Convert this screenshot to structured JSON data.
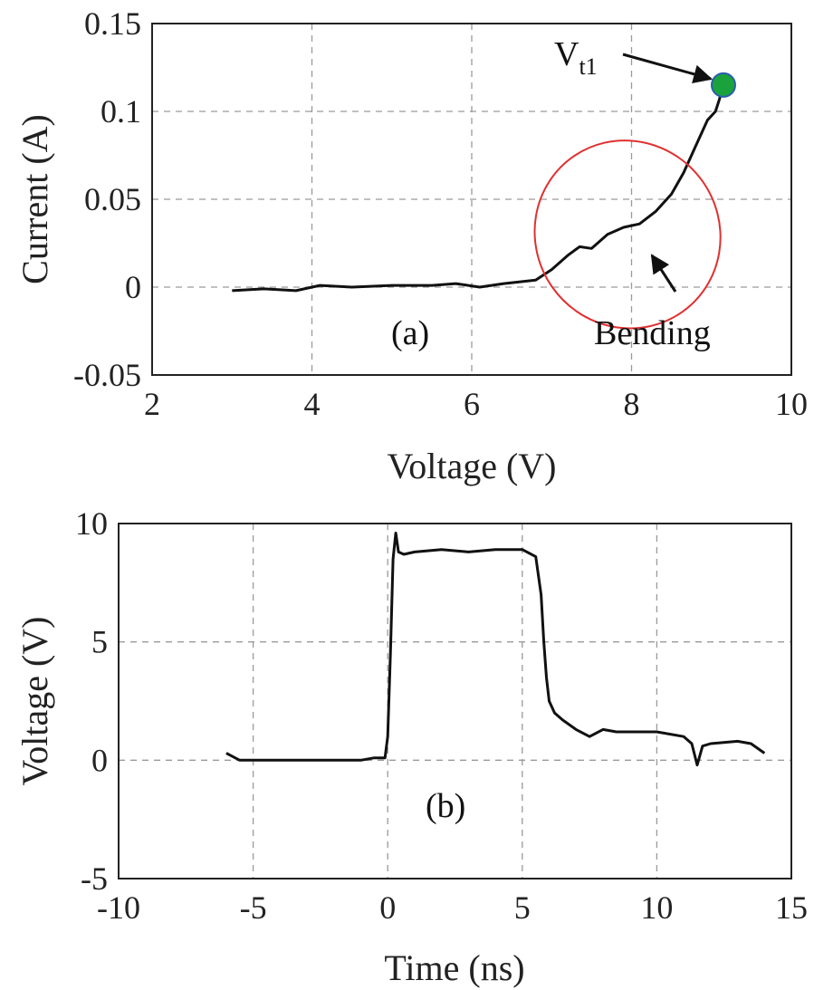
{
  "chart_data": [
    {
      "type": "line",
      "panel_label": "(a)",
      "xlabel": "Voltage (V)",
      "ylabel": "Current (A)",
      "xlim": [
        2,
        10
      ],
      "ylim": [
        -0.05,
        0.15
      ],
      "xticks": [
        2,
        4,
        6,
        8,
        10
      ],
      "yticks": [
        -0.05,
        0,
        0.05,
        0.1,
        0.15
      ],
      "xtick_labels": [
        "2",
        "4",
        "6",
        "8",
        "10"
      ],
      "ytick_labels": [
        "-0.05",
        "0",
        "0.05",
        "0.1",
        "0.15"
      ],
      "grid": true,
      "series": [
        {
          "x": [
            3.0,
            3.4,
            3.8,
            4.1,
            4.5,
            5.0,
            5.5,
            5.8,
            6.1,
            6.4,
            6.8,
            7.0,
            7.2,
            7.35,
            7.5,
            7.7,
            7.9,
            8.1,
            8.3,
            8.5,
            8.65,
            8.8,
            8.95,
            9.05,
            9.1,
            9.15
          ],
          "y": [
            -0.002,
            -0.001,
            -0.002,
            0.001,
            0.0,
            0.001,
            0.001,
            0.002,
            0.0,
            0.002,
            0.004,
            0.01,
            0.018,
            0.023,
            0.022,
            0.03,
            0.034,
            0.036,
            0.043,
            0.053,
            0.065,
            0.08,
            0.095,
            0.1,
            0.107,
            0.115
          ]
        }
      ],
      "marker": {
        "x": 9.15,
        "y": 0.115,
        "color": "#1aa33c",
        "edge_color": "#2a5db0"
      },
      "ellipse": {
        "cx": 7.95,
        "cy": 0.03,
        "rx": 1.15,
        "ry": 0.03,
        "angle_deg": -35,
        "color": "#e03030"
      },
      "annotations": [
        {
          "text": "V",
          "subscript": "t1",
          "points_to": "marker"
        },
        {
          "text": "Bending",
          "points_to": "ellipse"
        }
      ]
    },
    {
      "type": "line",
      "panel_label": "(b)",
      "xlabel": "Time (ns)",
      "ylabel": "Voltage (V)",
      "xlim": [
        -10,
        15
      ],
      "ylim": [
        -5,
        10
      ],
      "xticks": [
        -10,
        -5,
        0,
        5,
        10,
        15
      ],
      "yticks": [
        -5,
        0,
        5,
        10
      ],
      "xtick_labels": [
        "-10",
        "-5",
        "0",
        "5",
        "10",
        "15"
      ],
      "ytick_labels": [
        "-5",
        "0",
        "5",
        "10"
      ],
      "grid": true,
      "series": [
        {
          "x": [
            -6.0,
            -5.5,
            -5.0,
            -4.0,
            -3.0,
            -2.0,
            -1.0,
            -0.5,
            -0.1,
            0.0,
            0.1,
            0.2,
            0.3,
            0.4,
            0.6,
            1.0,
            2.0,
            3.0,
            4.0,
            5.0,
            5.5,
            5.7,
            5.8,
            5.9,
            6.0,
            6.2,
            6.5,
            7.0,
            7.5,
            8.0,
            8.5,
            9.0,
            10.0,
            11.0,
            11.3,
            11.5,
            11.7,
            12.0,
            13.0,
            13.5,
            14.0
          ],
          "y": [
            0.3,
            0.0,
            0.0,
            0.0,
            0.0,
            0.0,
            0.0,
            0.1,
            0.1,
            1.0,
            4.5,
            8.5,
            9.6,
            8.8,
            8.7,
            8.8,
            8.9,
            8.8,
            8.9,
            8.9,
            8.6,
            7.0,
            5.0,
            3.5,
            2.5,
            2.0,
            1.7,
            1.3,
            1.0,
            1.3,
            1.2,
            1.2,
            1.2,
            1.0,
            0.7,
            -0.2,
            0.6,
            0.7,
            0.8,
            0.7,
            0.3
          ]
        }
      ]
    }
  ]
}
